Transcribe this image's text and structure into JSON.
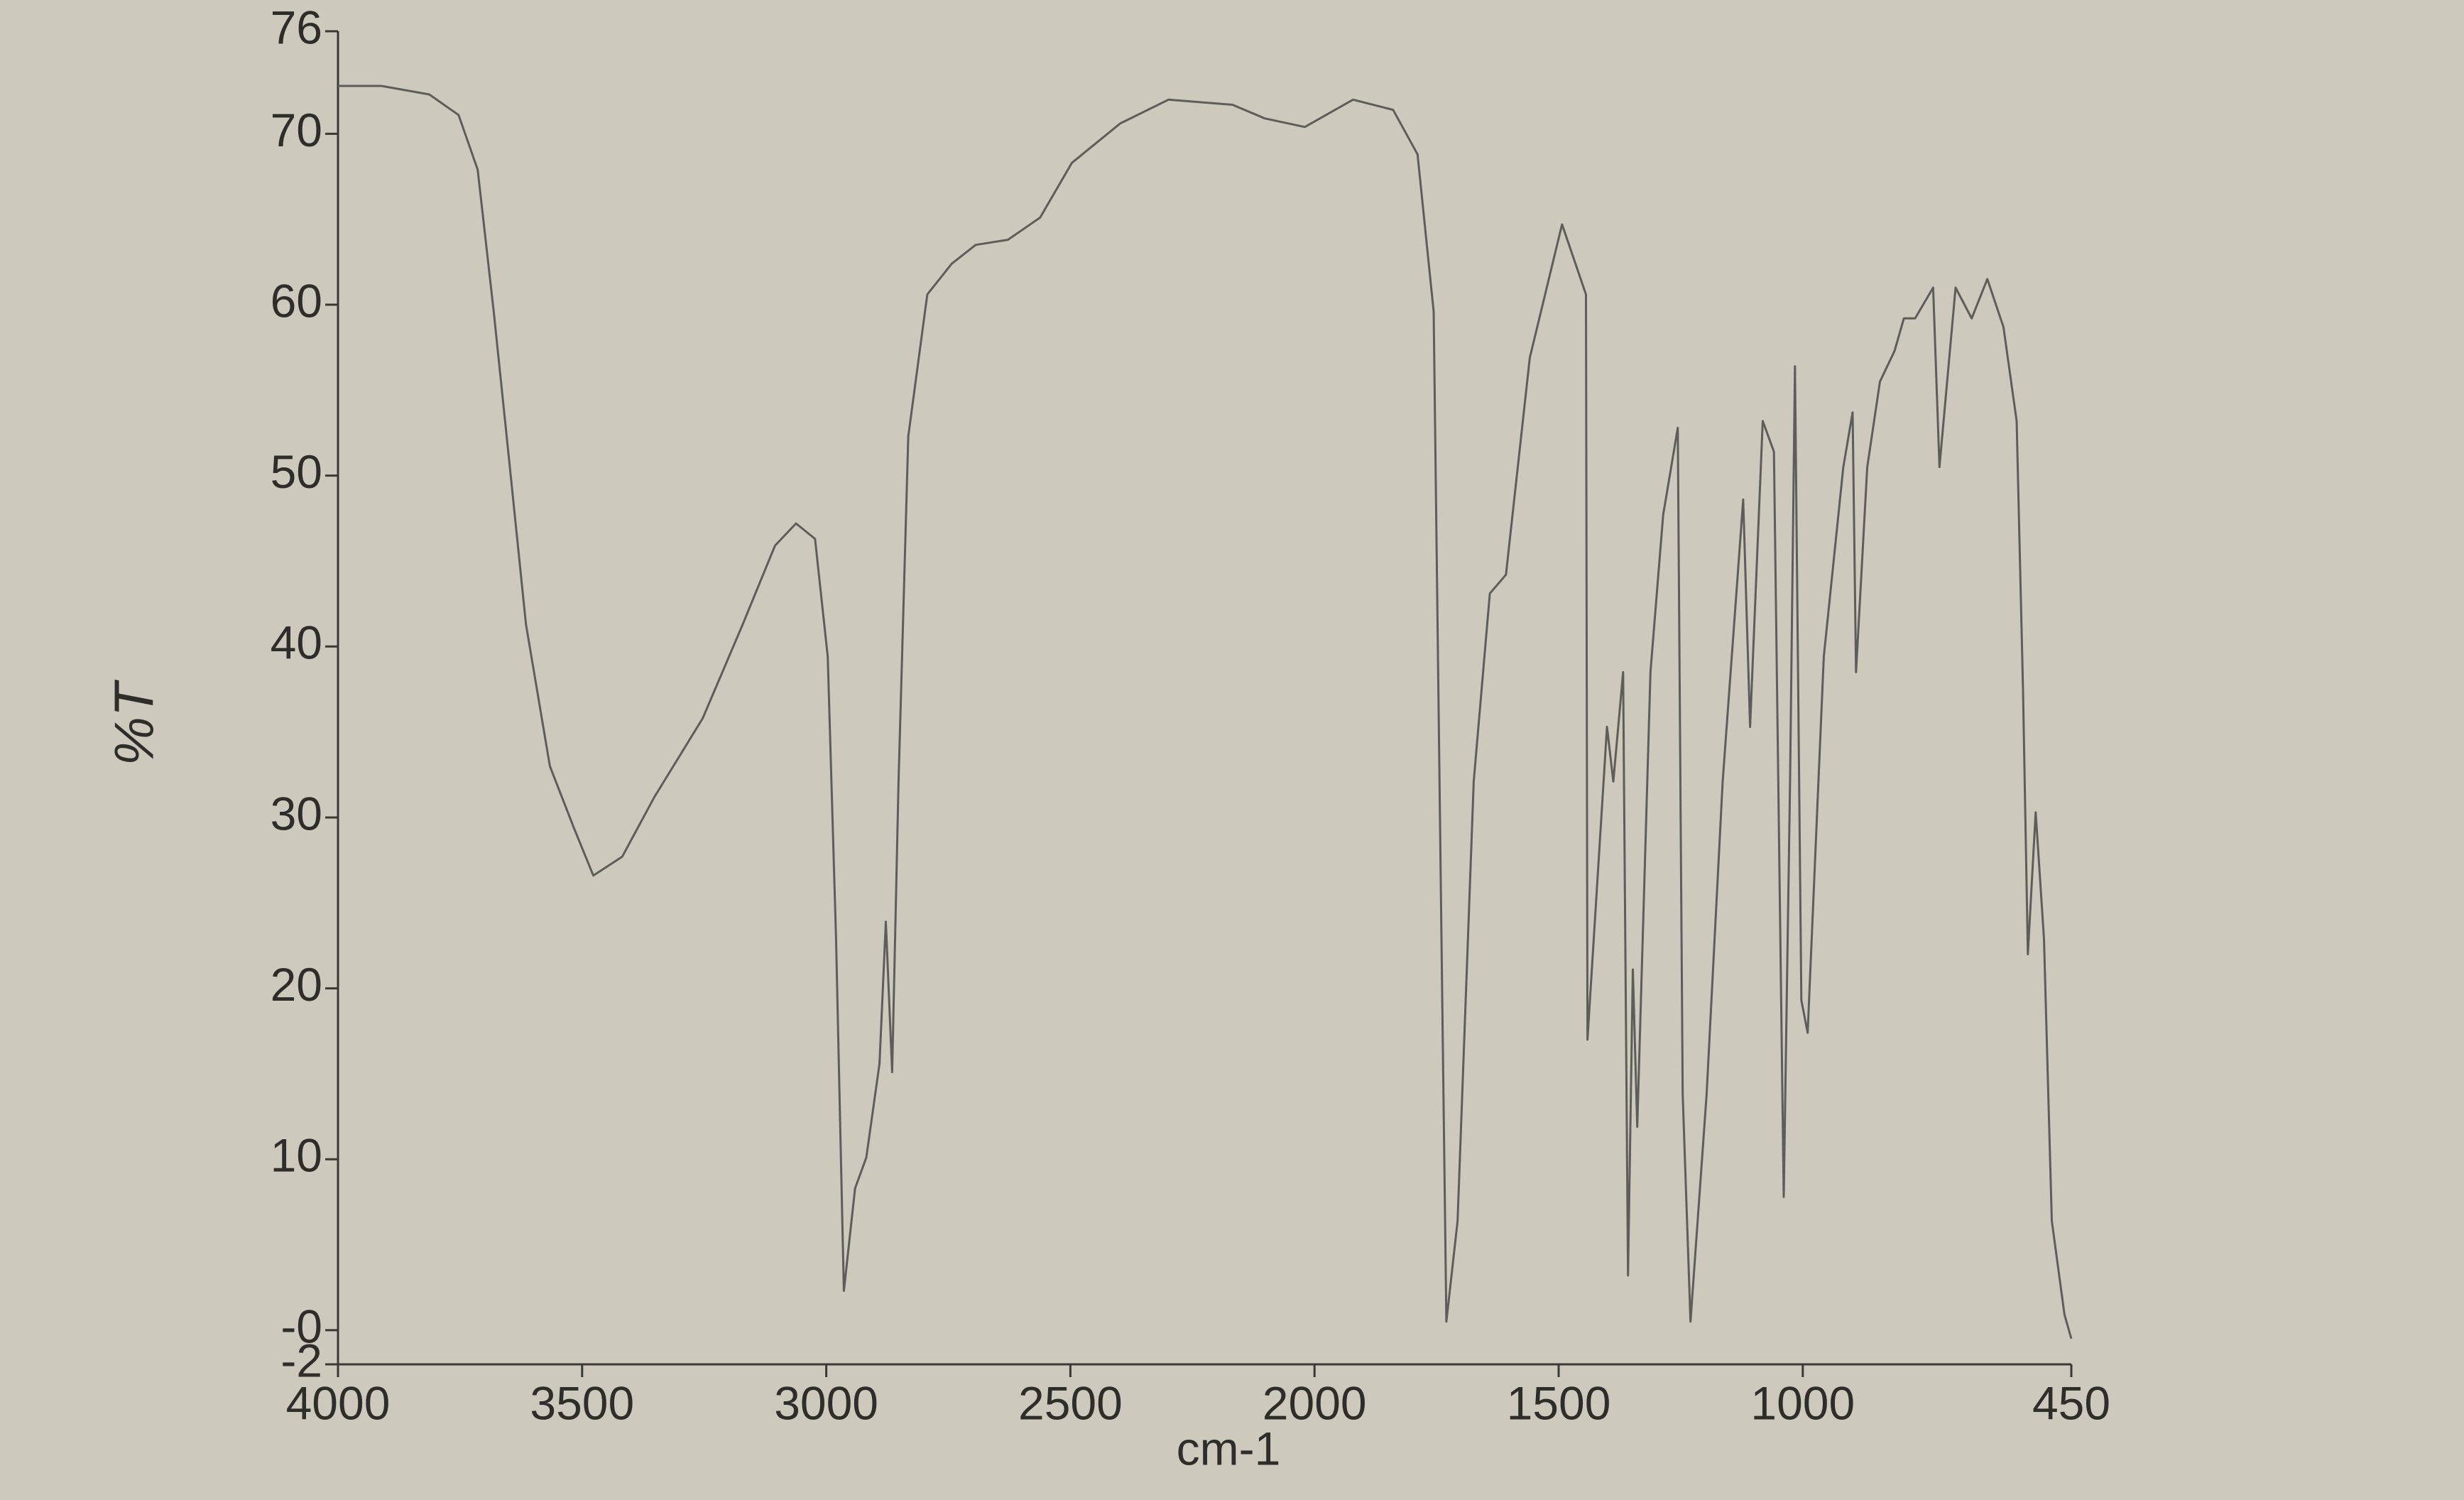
{
  "chart_data": {
    "type": "line",
    "x_label": "cm-1",
    "y_label": "%T",
    "xlim": [
      4000,
      450
    ],
    "ylim": [
      -2,
      76
    ],
    "xticks": [
      4000,
      3500,
      3000,
      2500,
      2000,
      1500,
      1000,
      450
    ],
    "yticks": [
      76,
      70,
      60,
      50,
      40,
      30,
      20,
      10,
      {
        "value": 0,
        "label": "-0"
      },
      -2
    ],
    "series": [
      {
        "color": "#5e5d59",
        "x": [
          4000,
          3911,
          3813,
          3753,
          3714,
          3681,
          3648,
          3615,
          3566,
          3517,
          3477,
          3418,
          3352,
          3253,
          3171,
          3105,
          3062,
          3023,
          2997,
          2980,
          2964,
          2941,
          2918,
          2891,
          2878,
          2865,
          2852,
          2832,
          2793,
          2743,
          2694,
          2628,
          2562,
          2497,
          2398,
          2299,
          2168,
          2102,
          2020,
          1921,
          1839,
          1789,
          1756,
          1740,
          1730,
          1707,
          1674,
          1641,
          1608,
          1559,
          1493,
          1444,
          1441,
          1401,
          1388,
          1368,
          1358,
          1348,
          1339,
          1312,
          1286,
          1256,
          1246,
          1230,
          1197,
          1164,
          1122,
          1108,
          1082,
          1059,
          1039,
          1026,
          1016,
          1003,
          990,
          957,
          917,
          898,
          891,
          868,
          842,
          812,
          793,
          770,
          733,
          720,
          687,
          654,
          622,
          589,
          562,
          549,
          539,
          523,
          506,
          490,
          464,
          450
        ],
        "values": [
          72.8,
          72.8,
          72.3,
          71.1,
          67.9,
          59.6,
          50.5,
          41.3,
          33.0,
          29.4,
          26.6,
          27.7,
          31.2,
          35.8,
          41.3,
          45.9,
          47.2,
          46.3,
          39.4,
          22.9,
          2.3,
          8.3,
          10.1,
          15.6,
          23.9,
          15.1,
          32.1,
          52.3,
          60.6,
          62.4,
          63.5,
          63.8,
          65.1,
          68.3,
          70.6,
          72.0,
          71.7,
          70.9,
          70.4,
          72.0,
          71.4,
          68.8,
          59.6,
          22.9,
          0.5,
          6.4,
          32.1,
          43.1,
          44.2,
          56.9,
          64.7,
          60.6,
          17.0,
          35.3,
          32.1,
          38.5,
          3.2,
          21.1,
          11.9,
          38.5,
          47.7,
          52.8,
          13.8,
          0.5,
          13.8,
          32.1,
          48.6,
          35.3,
          53.2,
          51.4,
          7.8,
          32.1,
          56.4,
          19.3,
          17.4,
          39.4,
          50.5,
          53.7,
          38.5,
          50.5,
          55.5,
          57.3,
          59.2,
          59.2,
          61.0,
          50.5,
          61.0,
          59.2,
          61.5,
          58.7,
          53.2,
          37.6,
          22.0,
          30.3,
          22.9,
          6.4,
          0.9,
          -0.5
        ]
      }
    ]
  }
}
